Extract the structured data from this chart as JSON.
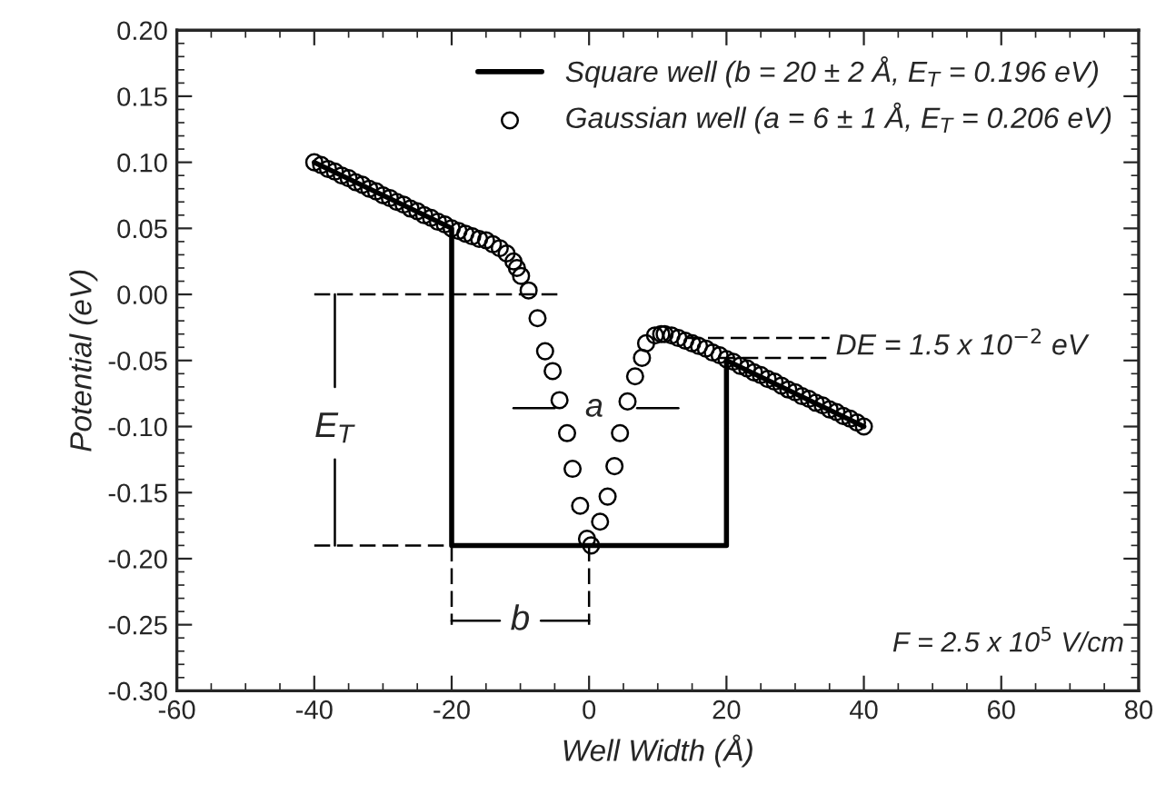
{
  "chart_data": {
    "type": "line",
    "xlabel": "Well Width (Å)",
    "ylabel": "Potential (eV)",
    "xlim": [
      -60,
      80
    ],
    "xticks": [
      -60,
      -40,
      -20,
      0,
      20,
      40,
      60,
      80
    ],
    "ylim": [
      -0.3,
      0.2
    ],
    "yticks": [
      {
        "value": -0.3,
        "label": "-0.30"
      },
      {
        "value": -0.25,
        "label": "-0.25"
      },
      {
        "value": -0.2,
        "label": "-0.20"
      },
      {
        "value": -0.15,
        "label": "-0.15"
      },
      {
        "value": -0.1,
        "label": "-0.10"
      },
      {
        "value": -0.05,
        "label": "-0.05"
      },
      {
        "value": 0,
        "label": "0.00"
      },
      {
        "value": 0.05,
        "label": "0.05"
      },
      {
        "value": 0.1,
        "label": "0.10"
      },
      {
        "value": 0.15,
        "label": "0.15"
      },
      {
        "value": 0.2,
        "label": "0.20"
      }
    ],
    "grid": false,
    "legend": "top right",
    "series": [
      {
        "name": "Square well (b = 20 ± 2 Å, E$_{T}$ = 0.196 eV)",
        "color": "#000000",
        "marker": "none",
        "line_style": "solid",
        "x": [
          -40,
          -20,
          -20,
          20,
          20,
          40
        ],
        "values": [
          0.1,
          0.05,
          -0.19,
          -0.19,
          -0.05,
          -0.1
        ]
      },
      {
        "name": "Gaussian well (a = 6 ± 1 Å, E$_{T}$ = 0.206 eV)",
        "type": "scatter",
        "color": "#000000",
        "marker": "circle",
        "x": [
          -40,
          -39,
          -38,
          -37,
          -36,
          -35,
          -34,
          -33,
          -32,
          -31,
          -30,
          -29,
          -28,
          -27,
          -26,
          -25,
          -24,
          -23,
          -22,
          -21,
          -20,
          -19,
          -18,
          -17,
          -16,
          -15,
          -14,
          -13,
          -12,
          -11,
          -10.5,
          -9.9,
          -8.8,
          -7.5,
          -6.4,
          -5.3,
          -4.3,
          -3.2,
          -2.4,
          -1.3,
          -0.3,
          0.3,
          1.6,
          2.7,
          3.7,
          4.5,
          5.6,
          6.7,
          7.7,
          8.3,
          9.6,
          10.5,
          11,
          12,
          13,
          14,
          15,
          16,
          17,
          18,
          19,
          20,
          21,
          22,
          23,
          24,
          25,
          26,
          27,
          28,
          29,
          30,
          31,
          32,
          33,
          34,
          35,
          36,
          37,
          38,
          39,
          40
        ],
        "values": [
          0.1,
          0.098,
          0.095,
          0.093,
          0.09,
          0.088,
          0.085,
          0.083,
          0.08,
          0.078,
          0.075,
          0.073,
          0.07,
          0.068,
          0.065,
          0.063,
          0.06,
          0.058,
          0.055,
          0.053,
          0.05,
          0.048,
          0.046,
          0.044,
          0.042,
          0.041,
          0.038,
          0.035,
          0.031,
          0.025,
          0.02,
          0.014,
          0.003,
          -0.018,
          -0.043,
          -0.058,
          -0.08,
          -0.105,
          -0.132,
          -0.16,
          -0.185,
          -0.19,
          -0.172,
          -0.153,
          -0.13,
          -0.105,
          -0.081,
          -0.062,
          -0.048,
          -0.037,
          -0.031,
          -0.03,
          -0.03,
          -0.031,
          -0.033,
          -0.035,
          -0.037,
          -0.039,
          -0.041,
          -0.044,
          -0.046,
          -0.049,
          -0.051,
          -0.054,
          -0.056,
          -0.059,
          -0.061,
          -0.064,
          -0.066,
          -0.069,
          -0.072,
          -0.074,
          -0.077,
          -0.079,
          -0.082,
          -0.084,
          -0.087,
          -0.089,
          -0.092,
          -0.094,
          -0.097,
          -0.1
        ]
      },
      {
        "type": "line",
        "color": "#000000",
        "marker": "none",
        "line_style": "dashed",
        "x": [
          -40,
          -4
        ],
        "values": [
          0,
          0
        ]
      },
      {
        "type": "line",
        "color": "#000000",
        "marker": "none",
        "line_style": "dashed",
        "x": [
          -40,
          -20
        ],
        "values": [
          -0.19,
          -0.19
        ]
      },
      {
        "type": "line",
        "color": "#000000",
        "marker": "none",
        "line_style": "dashed",
        "x": [
          -20,
          -20
        ],
        "values": [
          -0.19,
          -0.25
        ]
      },
      {
        "type": "line",
        "color": "#000000",
        "marker": "none",
        "line_style": "dashed",
        "x": [
          0,
          0
        ],
        "values": [
          -0.19,
          -0.25
        ]
      },
      {
        "type": "line",
        "color": "#000000",
        "marker": "none",
        "line_style": "dashed",
        "x": [
          14,
          35
        ],
        "values": [
          -0.033,
          -0.033
        ]
      },
      {
        "type": "line",
        "color": "#000000",
        "marker": "none",
        "line_style": "dashed",
        "x": [
          19,
          35
        ],
        "values": [
          -0.048,
          -0.048
        ]
      },
      {
        "type": "line",
        "color": "#000000",
        "marker": "none",
        "line_style": "solid",
        "x": [
          -37,
          -37
        ],
        "values": [
          0,
          -0.07
        ]
      },
      {
        "type": "line",
        "color": "#000000",
        "marker": "none",
        "line_style": "solid",
        "x": [
          -37,
          -37
        ],
        "values": [
          -0.125,
          -0.19
        ]
      },
      {
        "type": "line",
        "color": "#000000",
        "marker": "none",
        "line_style": "solid",
        "x": [
          -11,
          -5
        ],
        "values": [
          -0.086,
          -0.086
        ]
      },
      {
        "type": "line",
        "color": "#000000",
        "marker": "none",
        "line_style": "solid",
        "x": [
          13,
          7
        ],
        "values": [
          -0.086,
          -0.086
        ]
      },
      {
        "type": "line",
        "color": "#000000",
        "marker": "none",
        "line_style": "solid",
        "x": [
          -20,
          -13
        ],
        "values": [
          -0.247,
          -0.247
        ]
      },
      {
        "type": "line",
        "color": "#000000",
        "marker": "none",
        "line_style": "solid",
        "x": [
          -7,
          0
        ],
        "values": [
          -0.247,
          -0.247
        ]
      }
    ],
    "annotations": [
      "E$_{T}$",
      "a",
      "b",
      "DE = 1.5 x 10$^{−2}$ eV",
      "F = 2.5 x 10$^{5}$ V/cm"
    ]
  }
}
